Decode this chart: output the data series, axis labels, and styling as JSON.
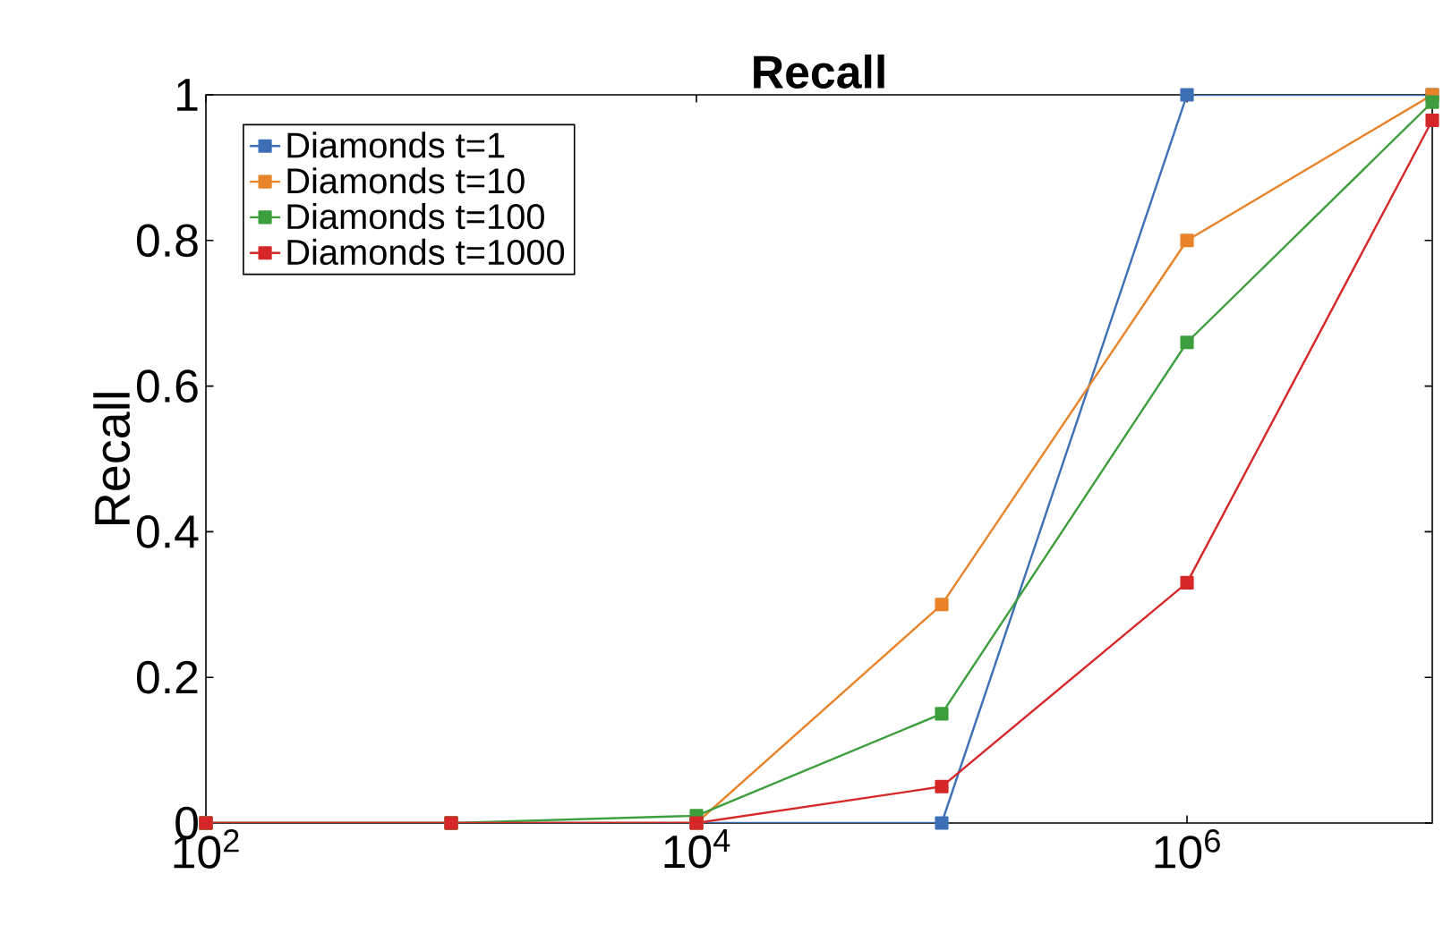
{
  "chart_data": {
    "type": "line",
    "title": "Recall",
    "ylabel": "Recall",
    "x": [
      100,
      1000,
      10000,
      100000,
      1000000,
      10000000
    ],
    "series": [
      {
        "name": "Diamonds t=1",
        "color": "#3c6fb5",
        "values": [
          0,
          0,
          0,
          0,
          1,
          1
        ]
      },
      {
        "name": "Diamonds t=10",
        "color": "#e8832a",
        "values": [
          0,
          0,
          0,
          0.3,
          0.8,
          1
        ]
      },
      {
        "name": "Diamonds t=100",
        "color": "#3d9e3d",
        "values": [
          0,
          0,
          0.01,
          0.15,
          0.66,
          0.99
        ]
      },
      {
        "name": "Diamonds t=1000",
        "color": "#d62728",
        "values": [
          0,
          0,
          0,
          0.05,
          0.33,
          0.965
        ]
      }
    ],
    "log": "x",
    "xlim": [
      100,
      10000000
    ],
    "ylim": [
      0,
      1
    ],
    "xticks": [
      {
        "value": 100,
        "label": "10$^{2}$"
      },
      {
        "value": 10000,
        "label": "10$^{4}$"
      },
      {
        "value": 1000000,
        "label": "10$^{6}$"
      }
    ],
    "yticks": [
      0,
      0.2,
      0.4,
      0.6,
      0.8,
      1
    ],
    "grid": false,
    "legend": "top left",
    "marker": "square",
    "line_style": "solid"
  }
}
